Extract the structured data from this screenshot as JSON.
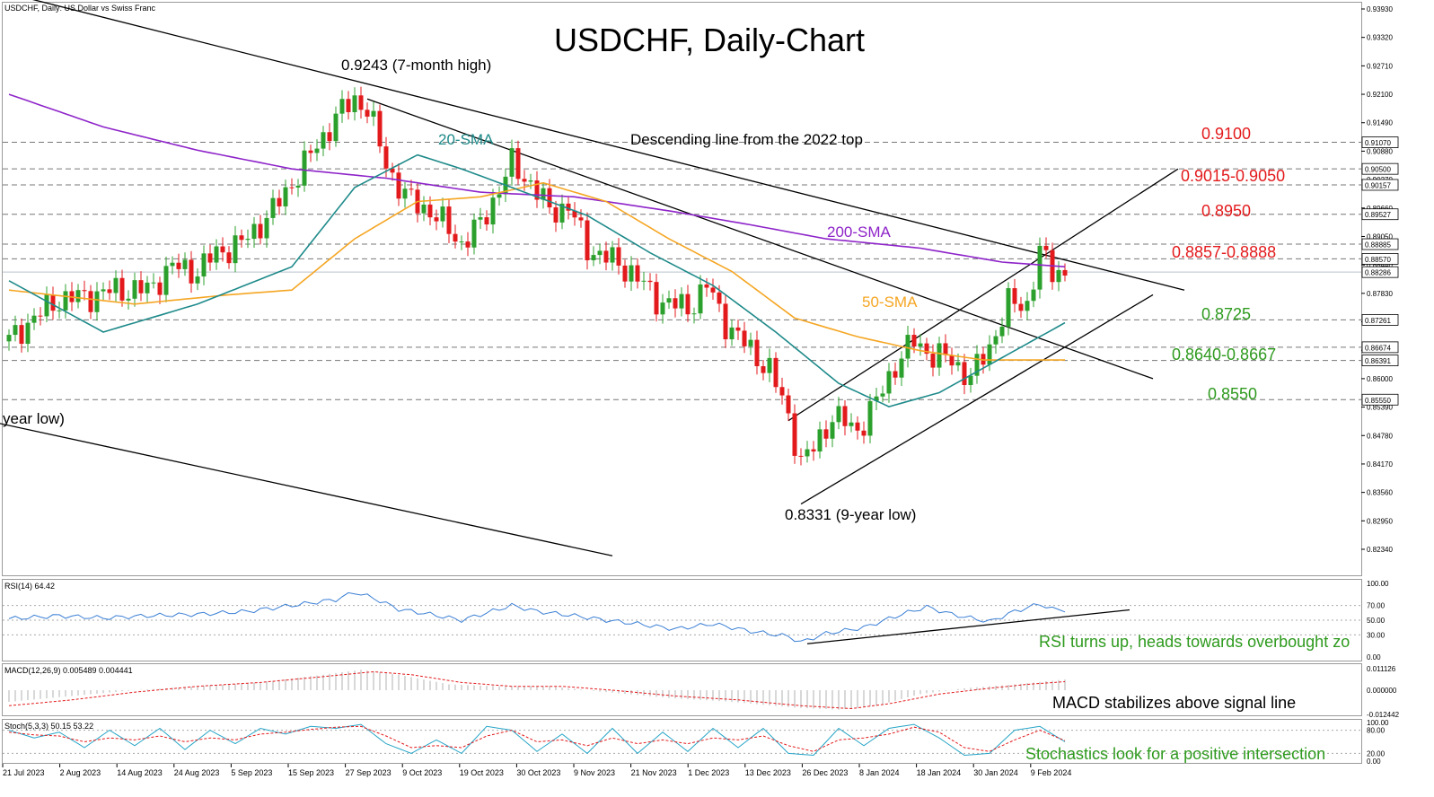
{
  "header": {
    "symbol_line": "USDCHF, Daily:  US Dollar vs Swiss Franc",
    "title": "USDCHF, Daily-Chart"
  },
  "colors": {
    "bull": "#2ca02c",
    "bear": "#e31a1c",
    "sma20": "#1f8a8a",
    "sma50": "#f5a623",
    "sma200": "#8e24c9",
    "resistance_text": "#e31a1c",
    "support_text": "#2e9a1e",
    "rsi_line": "#3a7fd5",
    "macd_signal": "#e31a1c",
    "macd_hist": "#b0b0b0",
    "stoch_main": "#27a5c7",
    "stoch_signal": "#e31a1c",
    "trendline": "#000000",
    "grid": "#777777"
  },
  "chart_data": {
    "type": "candlestick",
    "price_range": [
      0.8185,
      0.942
    ],
    "date_labels": [
      "21 Jul 2023",
      "2 Aug 2023",
      "14 Aug 2023",
      "24 Aug 2023",
      "5 Sep 2023",
      "15 Sep 2023",
      "27 Sep 2023",
      "9 Oct 2023",
      "19 Oct 2023",
      "30 Oct 2023",
      "9 Nov 2023",
      "21 Nov 2023",
      "1 Dec 2023",
      "13 Dec 2023",
      "26 Dec 2023",
      "8 Jan 2024",
      "18 Jan 2024",
      "30 Jan 2024",
      "9 Feb 2024"
    ],
    "price_ticks": [
      "0.93930",
      "0.93320",
      "0.92710",
      "0.92100",
      "0.91490",
      "0.90880",
      "0.90270",
      "0.89660",
      "0.89050",
      "0.88440",
      "0.87830",
      "0.87220",
      "0.86610",
      "0.86000",
      "0.85390",
      "0.84780",
      "0.84170",
      "0.83560",
      "0.82950",
      "0.82340"
    ],
    "level_tags": [
      "0.91070",
      "0.90500",
      "0.90157",
      "0.89527",
      "0.88885",
      "0.88570",
      "0.88286",
      "0.87261",
      "0.86674",
      "0.86391",
      "0.85550"
    ],
    "current_price_tag": "0.88286",
    "horizontal_levels": [
      0.9107,
      0.905,
      0.90157,
      0.89527,
      0.88885,
      0.8857,
      0.87261,
      0.86674,
      0.86391,
      0.8555
    ],
    "anchor_closes": [
      [
        0,
        0.868
      ],
      [
        3,
        0.872
      ],
      [
        8,
        0.877
      ],
      [
        12,
        0.8775
      ],
      [
        17,
        0.879
      ],
      [
        22,
        0.879
      ],
      [
        26,
        0.884
      ],
      [
        30,
        0.883
      ],
      [
        33,
        0.887
      ],
      [
        37,
        0.889
      ],
      [
        42,
        0.896
      ],
      [
        47,
        0.906
      ],
      [
        52,
        0.916
      ],
      [
        55,
        0.92
      ],
      [
        57,
        0.918
      ],
      [
        60,
        0.906
      ],
      [
        63,
        0.899
      ],
      [
        67,
        0.896
      ],
      [
        70,
        0.892
      ],
      [
        72,
        0.889
      ],
      [
        75,
        0.893
      ],
      [
        80,
        0.906
      ],
      [
        83,
        0.902
      ],
      [
        86,
        0.896
      ],
      [
        89,
        0.897
      ],
      [
        92,
        0.888
      ],
      [
        95,
        0.886
      ],
      [
        99,
        0.883
      ],
      [
        103,
        0.877
      ],
      [
        108,
        0.875
      ],
      [
        111,
        0.88
      ],
      [
        114,
        0.872
      ],
      [
        118,
        0.866
      ],
      [
        121,
        0.862
      ],
      [
        124,
        0.852
      ],
      [
        126,
        0.842
      ],
      [
        128,
        0.845
      ],
      [
        131,
        0.852
      ],
      [
        135,
        0.849
      ],
      [
        138,
        0.855
      ],
      [
        141,
        0.863
      ],
      [
        144,
        0.868
      ],
      [
        147,
        0.865
      ],
      [
        150,
        0.864
      ],
      [
        153,
        0.86
      ],
      [
        156,
        0.867
      ],
      [
        159,
        0.876
      ],
      [
        162,
        0.876
      ],
      [
        164,
        0.887
      ],
      [
        166,
        0.883
      ],
      [
        168,
        0.883
      ]
    ],
    "sma20_key": [
      [
        0,
        0.881
      ],
      [
        15,
        0.87
      ],
      [
        30,
        0.876
      ],
      [
        45,
        0.884
      ],
      [
        55,
        0.901
      ],
      [
        65,
        0.908
      ],
      [
        72,
        0.905
      ],
      [
        82,
        0.9
      ],
      [
        92,
        0.895
      ],
      [
        102,
        0.887
      ],
      [
        112,
        0.88
      ],
      [
        122,
        0.87
      ],
      [
        132,
        0.859
      ],
      [
        140,
        0.854
      ],
      [
        148,
        0.857
      ],
      [
        152,
        0.86
      ],
      [
        160,
        0.866
      ],
      [
        168,
        0.872
      ]
    ],
    "sma50_key": [
      [
        0,
        0.879
      ],
      [
        20,
        0.876
      ],
      [
        35,
        0.878
      ],
      [
        45,
        0.879
      ],
      [
        55,
        0.89
      ],
      [
        65,
        0.898
      ],
      [
        75,
        0.899
      ],
      [
        85,
        0.902
      ],
      [
        95,
        0.898
      ],
      [
        105,
        0.89
      ],
      [
        115,
        0.883
      ],
      [
        125,
        0.873
      ],
      [
        135,
        0.869
      ],
      [
        145,
        0.866
      ],
      [
        155,
        0.864
      ],
      [
        168,
        0.864
      ]
    ],
    "sma200_key": [
      [
        0,
        0.921
      ],
      [
        15,
        0.914
      ],
      [
        30,
        0.909
      ],
      [
        45,
        0.905
      ],
      [
        60,
        0.903
      ],
      [
        75,
        0.9
      ],
      [
        90,
        0.899
      ],
      [
        105,
        0.896
      ],
      [
        118,
        0.893
      ],
      [
        130,
        0.89
      ],
      [
        145,
        0.888
      ],
      [
        158,
        0.885
      ],
      [
        168,
        0.884
      ]
    ],
    "trendlines": {
      "descending_top": [
        [
          -7,
          0.945
        ],
        [
          187,
          0.879
        ]
      ],
      "descending_mid": [
        [
          57,
          0.92
        ],
        [
          182,
          0.86
        ]
      ],
      "channel_lower": [
        [
          -7,
          0.852
        ],
        [
          96,
          0.822
        ]
      ],
      "wedge_upper": [
        [
          124,
          0.851
        ],
        [
          186,
          0.905
        ]
      ],
      "wedge_lower": [
        [
          126,
          0.8331
        ],
        [
          182,
          0.878
        ]
      ]
    },
    "annotations": {
      "high": "0.9243 (7-month high)",
      "low": "0.8331 (9-year low)",
      "prev_low": "year low)",
      "desc_line": "Descending line from the 2022 top",
      "sma20": "20-SMA",
      "sma50": "50-SMA",
      "sma200": "200-SMA",
      "r1": "0.9100",
      "r2": "0.9015-0.9050",
      "r3": "0.8950",
      "r4": "0.8857-0.8888",
      "s1": "0.8725",
      "s2": "0.8640-0.8667",
      "s3": "0.8550"
    },
    "rsi": {
      "label": "RSI(14) 64.42",
      "value": 64.42,
      "ticks": [
        "100.00",
        "70.00",
        "50.00",
        "30.00",
        "0.00"
      ],
      "key": [
        [
          0,
          52
        ],
        [
          8,
          56
        ],
        [
          15,
          53
        ],
        [
          22,
          56
        ],
        [
          30,
          58
        ],
        [
          38,
          62
        ],
        [
          45,
          70
        ],
        [
          52,
          78
        ],
        [
          55,
          88
        ],
        [
          58,
          80
        ],
        [
          62,
          65
        ],
        [
          67,
          58
        ],
        [
          72,
          50
        ],
        [
          76,
          60
        ],
        [
          80,
          70
        ],
        [
          84,
          62
        ],
        [
          90,
          56
        ],
        [
          95,
          50
        ],
        [
          100,
          45
        ],
        [
          106,
          38
        ],
        [
          112,
          45
        ],
        [
          118,
          35
        ],
        [
          124,
          28
        ],
        [
          126,
          20
        ],
        [
          130,
          32
        ],
        [
          136,
          40
        ],
        [
          142,
          58
        ],
        [
          146,
          68
        ],
        [
          150,
          58
        ],
        [
          156,
          48
        ],
        [
          160,
          62
        ],
        [
          164,
          72
        ],
        [
          166,
          65
        ],
        [
          168,
          64
        ]
      ],
      "note": "RSI turns up, heads towards overbought zo"
    },
    "macd": {
      "label": "MACD(12,26,9) 0.005489 0.004441",
      "ticks": [
        "0.011126",
        "0.000000",
        "-0.012442"
      ],
      "hist_key": [
        [
          0,
          -0.006
        ],
        [
          10,
          -0.003
        ],
        [
          20,
          0.0
        ],
        [
          30,
          0.002
        ],
        [
          40,
          0.004
        ],
        [
          50,
          0.008
        ],
        [
          56,
          0.0105
        ],
        [
          62,
          0.008
        ],
        [
          70,
          0.003
        ],
        [
          78,
          0.002
        ],
        [
          86,
          0.002
        ],
        [
          95,
          -0.001
        ],
        [
          105,
          -0.004
        ],
        [
          115,
          -0.006
        ],
        [
          125,
          -0.009
        ],
        [
          132,
          -0.01
        ],
        [
          138,
          -0.008
        ],
        [
          145,
          -0.002
        ],
        [
          152,
          0.001
        ],
        [
          160,
          0.003
        ],
        [
          168,
          0.0055
        ]
      ],
      "signal_key": [
        [
          0,
          -0.008
        ],
        [
          10,
          -0.005
        ],
        [
          20,
          -0.001
        ],
        [
          30,
          0.002
        ],
        [
          40,
          0.004
        ],
        [
          50,
          0.007
        ],
        [
          58,
          0.0095
        ],
        [
          64,
          0.008
        ],
        [
          72,
          0.004
        ],
        [
          80,
          0.002
        ],
        [
          88,
          0.002
        ],
        [
          96,
          0.0
        ],
        [
          106,
          -0.003
        ],
        [
          116,
          -0.005
        ],
        [
          126,
          -0.008
        ],
        [
          134,
          -0.0095
        ],
        [
          140,
          -0.007
        ],
        [
          148,
          -0.002
        ],
        [
          156,
          0.001
        ],
        [
          162,
          0.003
        ],
        [
          168,
          0.0044
        ]
      ],
      "note": "MACD stabilizes above signal line"
    },
    "stoch": {
      "label": "Stoch(5,3,3) 50.15 53.22",
      "ticks": [
        "100.00",
        "80.00",
        "20.00",
        "0.00"
      ],
      "main_key": [
        [
          0,
          80
        ],
        [
          4,
          60
        ],
        [
          8,
          75
        ],
        [
          12,
          35
        ],
        [
          16,
          80
        ],
        [
          20,
          40
        ],
        [
          24,
          85
        ],
        [
          28,
          30
        ],
        [
          32,
          80
        ],
        [
          36,
          45
        ],
        [
          40,
          85
        ],
        [
          44,
          70
        ],
        [
          48,
          90
        ],
        [
          52,
          85
        ],
        [
          56,
          95
        ],
        [
          60,
          45
        ],
        [
          64,
          20
        ],
        [
          68,
          55
        ],
        [
          72,
          20
        ],
        [
          76,
          90
        ],
        [
          80,
          80
        ],
        [
          84,
          25
        ],
        [
          88,
          70
        ],
        [
          92,
          20
        ],
        [
          96,
          85
        ],
        [
          100,
          20
        ],
        [
          104,
          75
        ],
        [
          108,
          25
        ],
        [
          112,
          85
        ],
        [
          116,
          35
        ],
        [
          120,
          85
        ],
        [
          124,
          20
        ],
        [
          128,
          15
        ],
        [
          132,
          85
        ],
        [
          136,
          40
        ],
        [
          140,
          85
        ],
        [
          144,
          95
        ],
        [
          148,
          60
        ],
        [
          152,
          15
        ],
        [
          156,
          20
        ],
        [
          160,
          80
        ],
        [
          164,
          90
        ],
        [
          168,
          50
        ]
      ],
      "signal_key": [
        [
          0,
          75
        ],
        [
          4,
          68
        ],
        [
          8,
          65
        ],
        [
          12,
          50
        ],
        [
          16,
          60
        ],
        [
          20,
          55
        ],
        [
          24,
          65
        ],
        [
          28,
          50
        ],
        [
          32,
          60
        ],
        [
          36,
          55
        ],
        [
          40,
          70
        ],
        [
          44,
          75
        ],
        [
          48,
          82
        ],
        [
          52,
          88
        ],
        [
          56,
          90
        ],
        [
          60,
          65
        ],
        [
          64,
          35
        ],
        [
          68,
          40
        ],
        [
          72,
          35
        ],
        [
          76,
          65
        ],
        [
          80,
          80
        ],
        [
          84,
          50
        ],
        [
          88,
          55
        ],
        [
          92,
          40
        ],
        [
          96,
          60
        ],
        [
          100,
          45
        ],
        [
          104,
          55
        ],
        [
          108,
          45
        ],
        [
          112,
          60
        ],
        [
          116,
          55
        ],
        [
          120,
          65
        ],
        [
          124,
          40
        ],
        [
          128,
          25
        ],
        [
          132,
          55
        ],
        [
          136,
          60
        ],
        [
          140,
          70
        ],
        [
          144,
          88
        ],
        [
          148,
          75
        ],
        [
          152,
          35
        ],
        [
          156,
          25
        ],
        [
          160,
          55
        ],
        [
          164,
          80
        ],
        [
          168,
          53
        ]
      ],
      "note": "Stochastics look for a positive intersection"
    }
  }
}
